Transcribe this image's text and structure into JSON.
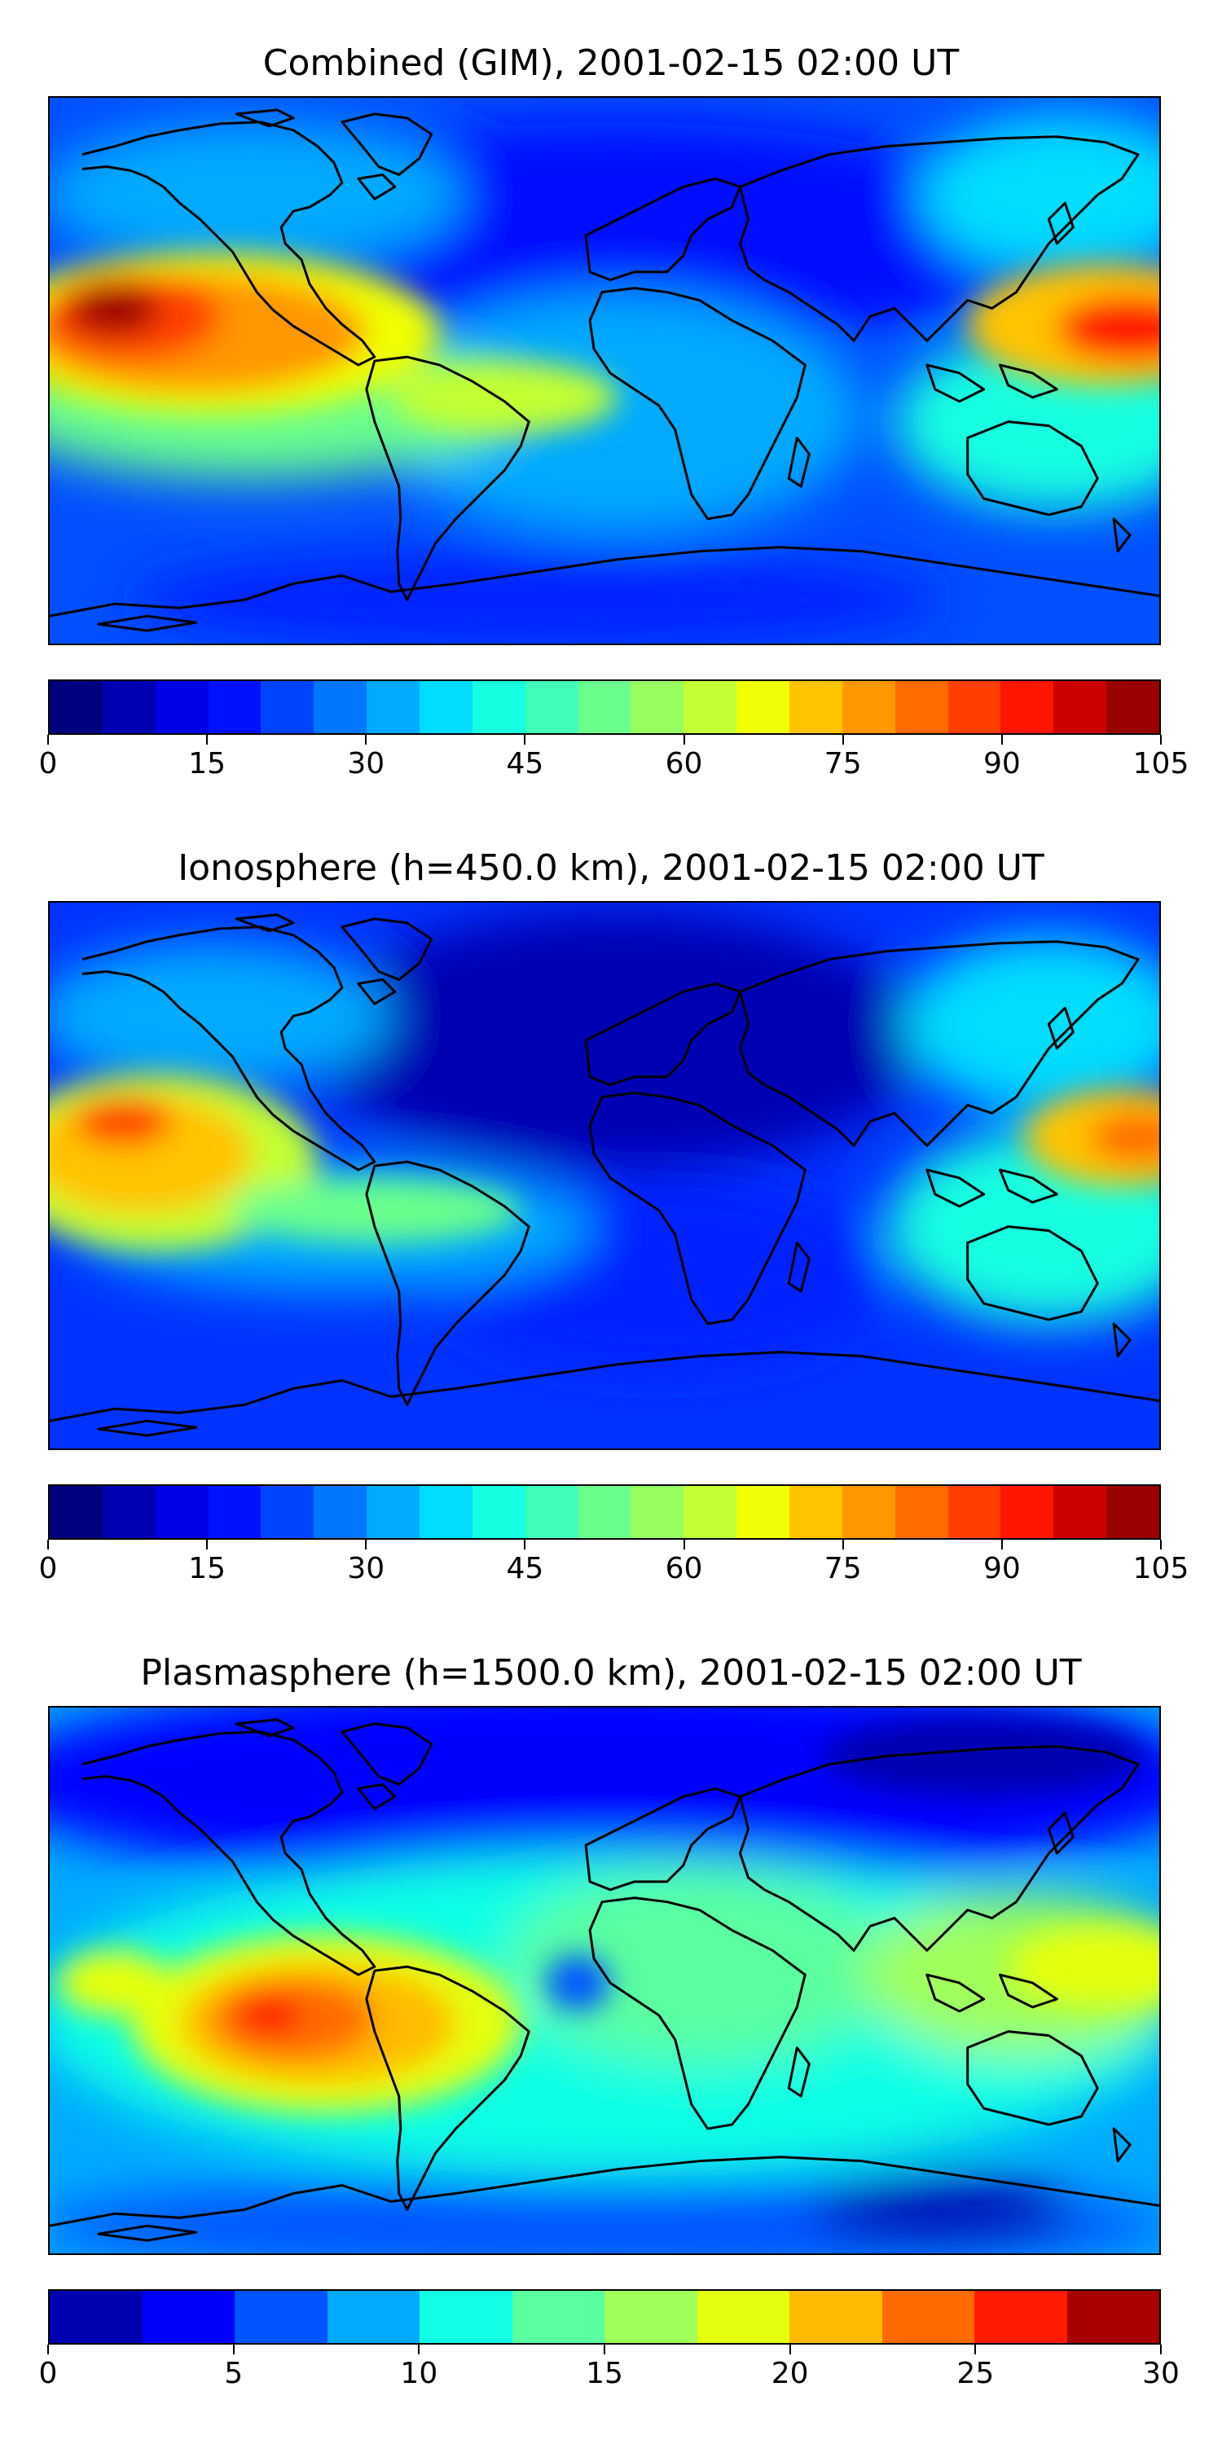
{
  "panels": [
    {
      "title": "Combined (GIM), 2001-02-15 02:00 UT",
      "colorbar": {
        "colors": [
          "#00007f",
          "#0000b2",
          "#0000e5",
          "#0011ff",
          "#0044ff",
          "#0077ff",
          "#00aaff",
          "#00ddff",
          "#16ffe1",
          "#3fffb8",
          "#6bff8c",
          "#97ff60",
          "#c4ff33",
          "#f0ff06",
          "#ffc400",
          "#ff9700",
          "#ff6b00",
          "#ff3f00",
          "#ff1600",
          "#cc0000",
          "#990000"
        ],
        "ticks": [
          "0",
          "15",
          "30",
          "45",
          "60",
          "75",
          "90",
          "105"
        ]
      }
    },
    {
      "title": "Ionosphere  (h=450.0 km), 2001-02-15 02:00 UT",
      "colorbar": {
        "colors": [
          "#00007f",
          "#0000b2",
          "#0000e5",
          "#0011ff",
          "#0044ff",
          "#0077ff",
          "#00aaff",
          "#00ddff",
          "#16ffe1",
          "#3fffb8",
          "#6bff8c",
          "#97ff60",
          "#c4ff33",
          "#f0ff06",
          "#ffc400",
          "#ff9700",
          "#ff6b00",
          "#ff3f00",
          "#ff1600",
          "#cc0000",
          "#990000"
        ],
        "ticks": [
          "0",
          "15",
          "30",
          "45",
          "60",
          "75",
          "90",
          "105"
        ]
      }
    },
    {
      "title": "Plasmasphere (h=1500.0 km), 2001-02-15 02:00 UT",
      "colorbar": {
        "colors": [
          "#0000b0",
          "#0000ff",
          "#0055ff",
          "#00aaff",
          "#11ffe5",
          "#5affa0",
          "#a0ff5a",
          "#e5ff11",
          "#ffbb00",
          "#ff6a00",
          "#ff1a00",
          "#a80000"
        ],
        "ticks": [
          "0",
          "5",
          "10",
          "15",
          "20",
          "25",
          "30"
        ]
      }
    }
  ]
}
